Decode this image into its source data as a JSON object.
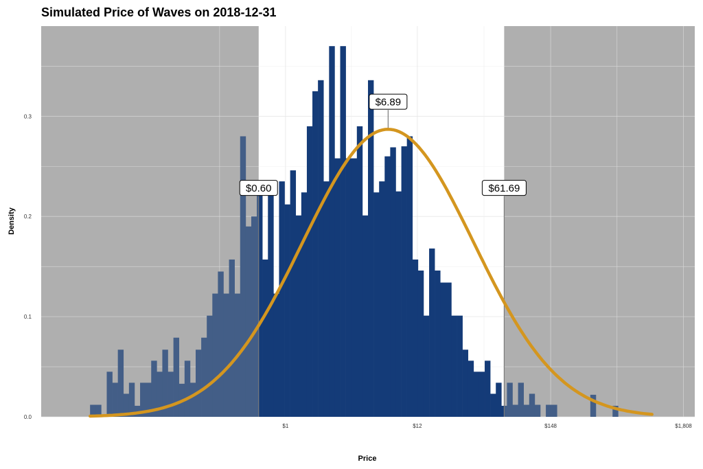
{
  "chart_data": {
    "type": "histogram",
    "title": "Simulated Price of Waves on 2018-12-31",
    "xlabel": "Price",
    "ylabel": "Density",
    "x_scale": "log10",
    "x_ticks": [
      {
        "value": 1,
        "label": "$1"
      },
      {
        "value": 12,
        "label": "$12"
      },
      {
        "value": 148,
        "label": "$148"
      },
      {
        "value": 1808,
        "label": "$1,808"
      }
    ],
    "y_ticks": [
      {
        "value": 0.0,
        "label": "0.0"
      },
      {
        "value": 0.1,
        "label": "0.1"
      },
      {
        "value": 0.2,
        "label": "0.2"
      },
      {
        "value": 0.3,
        "label": "0.3"
      }
    ],
    "xlim_log10": [
      -2.0,
      3.35
    ],
    "ylim": [
      0,
      0.39
    ],
    "grid": true,
    "bar_color": "#143b78",
    "curve_color": "#d4961f",
    "shade_color": "#b3b3b3",
    "shaded_regions": [
      {
        "from": -2.0,
        "to": -0.22
      },
      {
        "from": 1.79,
        "to": 3.35
      }
    ],
    "bins": {
      "start_log10": -1.6,
      "width_log10": 0.0455,
      "values": [
        0.012,
        0.012,
        0.0,
        0.045,
        0.034,
        0.067,
        0.023,
        0.034,
        0.011,
        0.034,
        0.034,
        0.056,
        0.045,
        0.067,
        0.045,
        0.079,
        0.033,
        0.056,
        0.034,
        0.067,
        0.079,
        0.101,
        0.123,
        0.145,
        0.123,
        0.157,
        0.123,
        0.28,
        0.19,
        0.2,
        0.235,
        0.157,
        0.235,
        0.123,
        0.235,
        0.212,
        0.246,
        0.201,
        0.224,
        0.29,
        0.325,
        0.336,
        0.235,
        0.37,
        0.258,
        0.37,
        0.258,
        0.258,
        0.29,
        0.201,
        0.336,
        0.224,
        0.235,
        0.26,
        0.269,
        0.225,
        0.27,
        0.28,
        0.157,
        0.146,
        0.101,
        0.168,
        0.146,
        0.134,
        0.134,
        0.101,
        0.101,
        0.067,
        0.056,
        0.045,
        0.045,
        0.056,
        0.023,
        0.034,
        0.011,
        0.034,
        0.012,
        0.034,
        0.012,
        0.023,
        0.012,
        0.0,
        0.012,
        0.012,
        0.0,
        0.0,
        0.0,
        0.0,
        0.0,
        0.0,
        0.022,
        0.0,
        0.0,
        0.0,
        0.011
      ]
    },
    "density_curve": {
      "mean_log10": 0.84,
      "sd_log10": 0.7,
      "scale": 0.287,
      "from_log10": -1.6,
      "to_log10": 3.0
    },
    "annotations": [
      {
        "label": "$0.60",
        "x_log10": -0.22,
        "y": 0.2285
      },
      {
        "label": "$6.89",
        "x_log10": 0.84,
        "y": 0.3145
      },
      {
        "label": "$61.69",
        "x_log10": 1.79,
        "y": 0.2285
      }
    ]
  }
}
